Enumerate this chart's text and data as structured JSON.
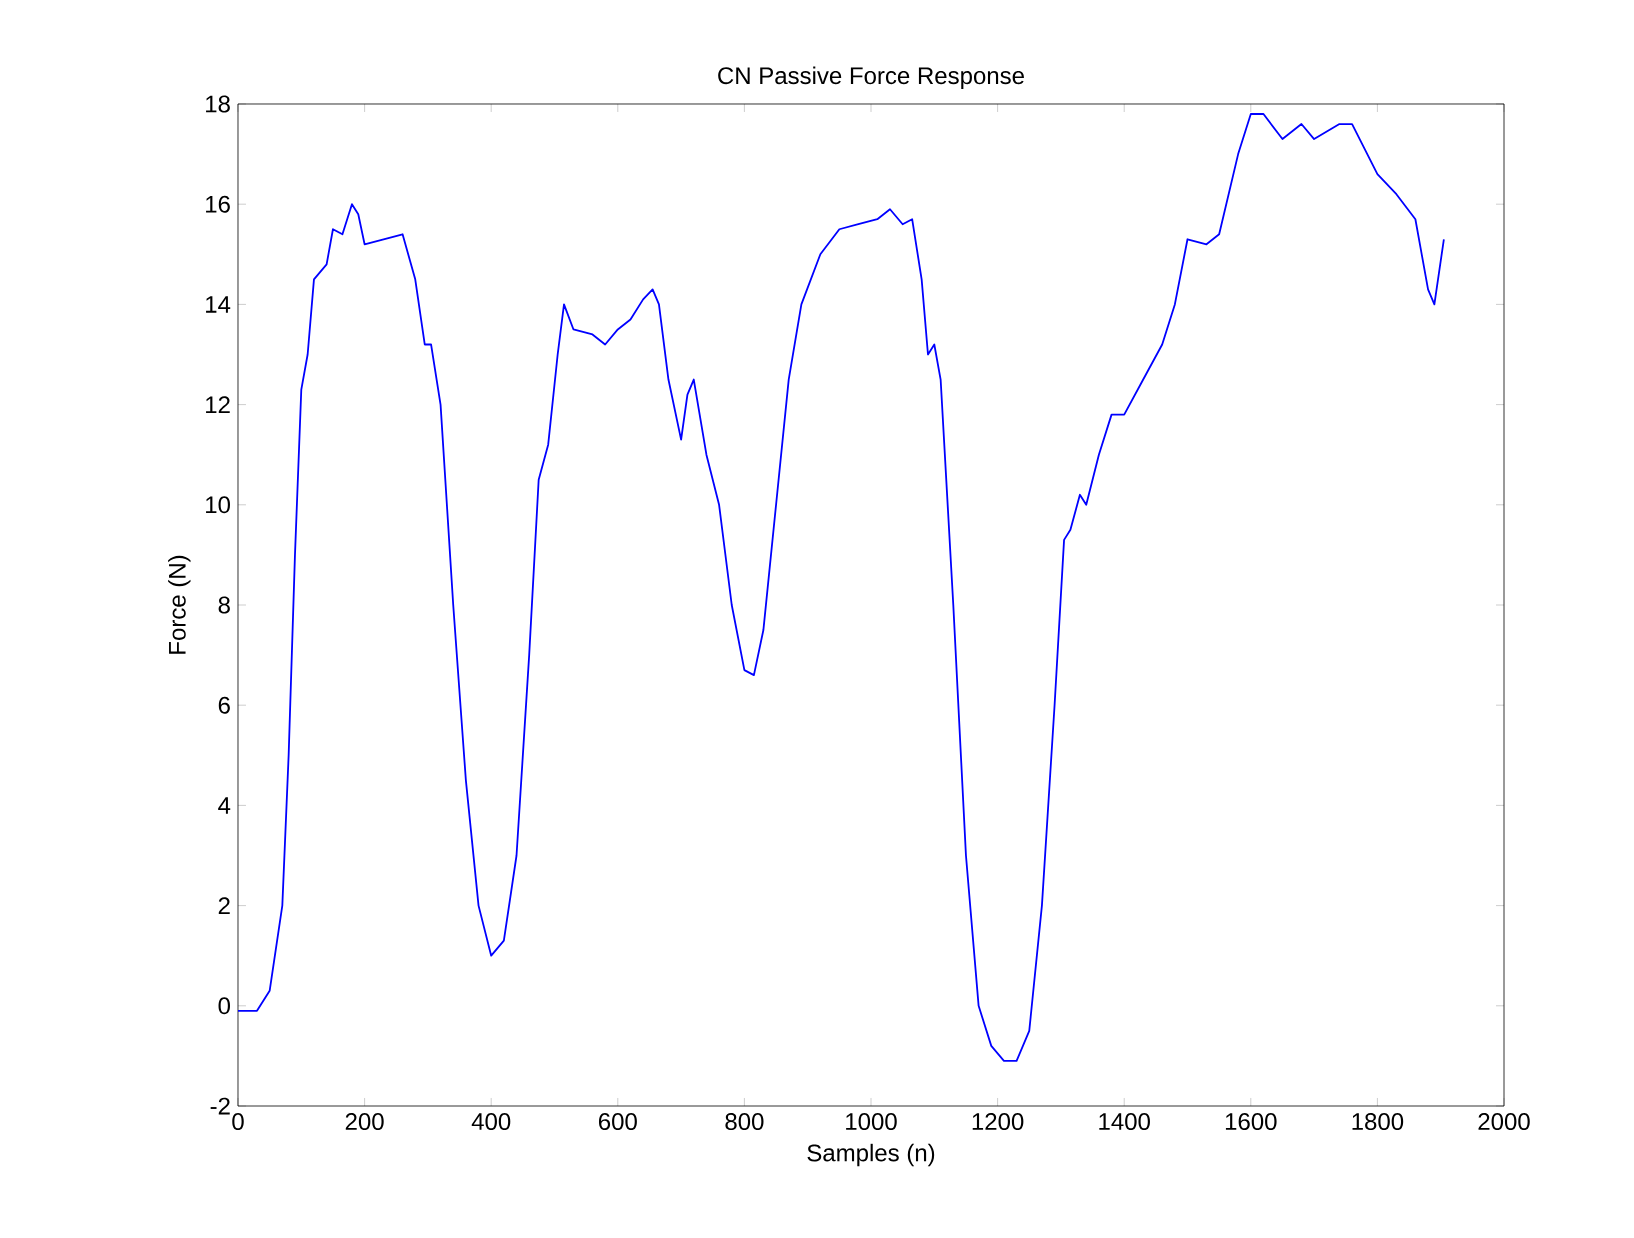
{
  "chart_data": {
    "type": "line",
    "title": "CN Passive Force Response",
    "xlabel": "Samples (n)",
    "ylabel": "Force (N)",
    "xlim": [
      0,
      2000
    ],
    "ylim": [
      -2,
      18
    ],
    "xticks": [
      0,
      200,
      400,
      600,
      800,
      1000,
      1200,
      1400,
      1600,
      1800,
      2000
    ],
    "yticks": [
      -2,
      0,
      2,
      4,
      6,
      8,
      10,
      12,
      14,
      16,
      18
    ],
    "series": [
      {
        "color": "#0000ff",
        "x": [
          0,
          30,
          50,
          70,
          80,
          90,
          100,
          110,
          120,
          140,
          150,
          165,
          180,
          190,
          200,
          230,
          260,
          280,
          295,
          305,
          320,
          340,
          360,
          380,
          400,
          420,
          440,
          460,
          475,
          490,
          505,
          515,
          530,
          560,
          580,
          600,
          620,
          640,
          655,
          665,
          680,
          700,
          710,
          720,
          740,
          760,
          780,
          800,
          815,
          830,
          850,
          870,
          890,
          920,
          950,
          980,
          1010,
          1030,
          1050,
          1065,
          1080,
          1090,
          1100,
          1110,
          1130,
          1150,
          1170,
          1190,
          1210,
          1230,
          1250,
          1270,
          1290,
          1305,
          1315,
          1330,
          1340,
          1360,
          1380,
          1400,
          1430,
          1460,
          1480,
          1500,
          1530,
          1550,
          1580,
          1600,
          1620,
          1650,
          1680,
          1700,
          1740,
          1760,
          1800,
          1830,
          1860,
          1880,
          1890,
          1905
        ],
        "values": [
          -0.1,
          -0.1,
          0.3,
          2,
          5,
          9,
          12.3,
          13,
          14.5,
          14.8,
          15.5,
          15.4,
          16,
          15.8,
          15.2,
          15.3,
          15.4,
          14.5,
          13.2,
          13.2,
          12,
          8,
          4.5,
          2,
          1.0,
          1.3,
          3,
          7,
          10.5,
          11.2,
          13,
          14,
          13.5,
          13.4,
          13.2,
          13.5,
          13.7,
          14.1,
          14.3,
          14,
          12.5,
          11.3,
          12.2,
          12.5,
          11,
          10,
          8,
          6.7,
          6.6,
          7.5,
          10,
          12.5,
          14,
          15,
          15.5,
          15.6,
          15.7,
          15.9,
          15.6,
          15.7,
          14.5,
          13,
          13.2,
          12.5,
          8,
          3,
          0,
          -0.8,
          -1.1,
          -1.1,
          -0.5,
          2,
          6,
          9.3,
          9.5,
          10.2,
          10,
          11,
          11.8,
          11.8,
          12.5,
          13.2,
          14,
          15.3,
          15.2,
          15.4,
          17,
          17.8,
          17.8,
          17.3,
          17.6,
          17.3,
          17.6,
          17.6,
          16.6,
          16.2,
          15.7,
          14.3,
          14,
          15.3
        ]
      }
    ]
  }
}
